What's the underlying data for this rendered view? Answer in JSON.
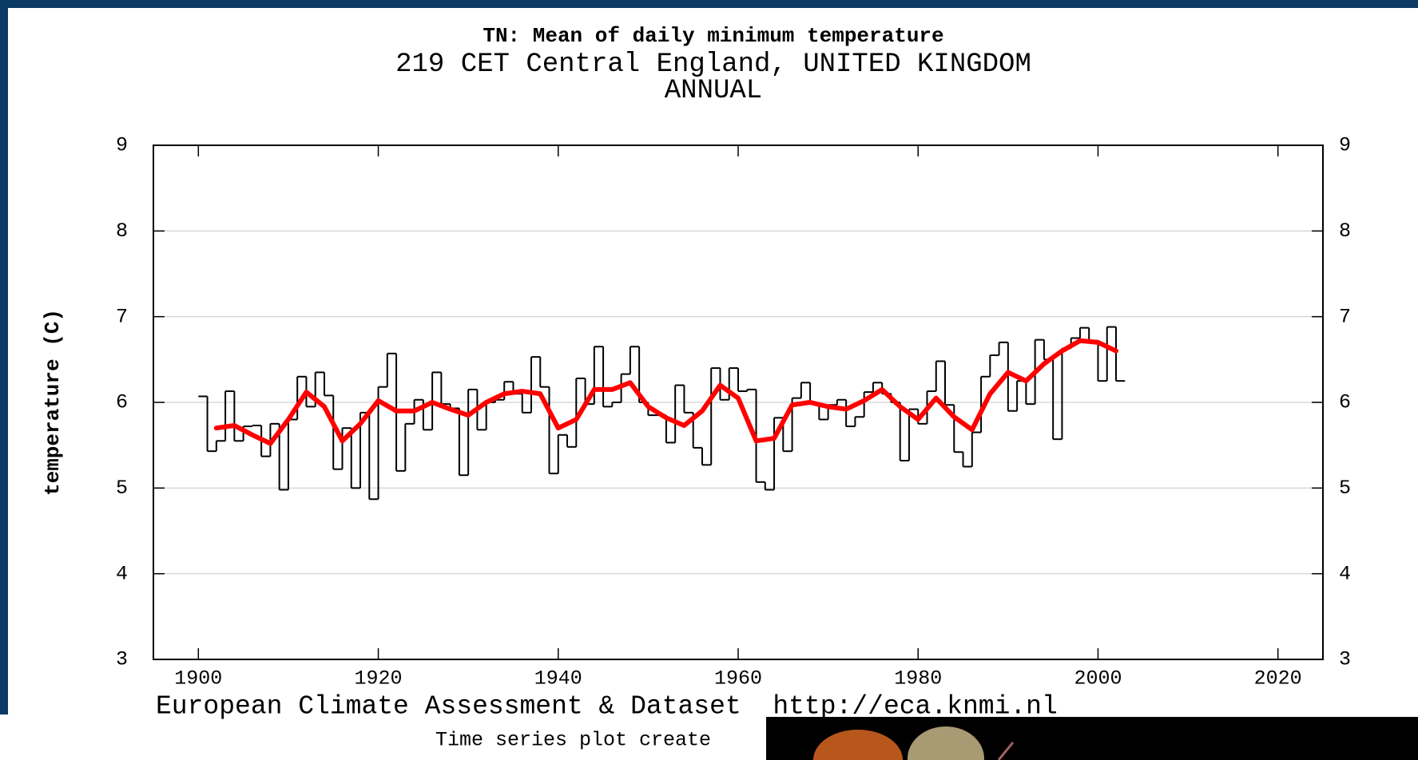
{
  "chart_data": {
    "type": "line",
    "title": "TN: Mean of daily minimum temperature",
    "subtitle": "219 CET Central England, UNITED KINGDOM",
    "period": "ANNUAL",
    "ylabel": "temperature (C)",
    "footer": "European Climate Assessment & Dataset  http://eca.knmi.nl",
    "note": "Time series plot create",
    "xlim": [
      1895,
      2025
    ],
    "xticks": [
      1900,
      1920,
      1940,
      1960,
      1980,
      2000,
      2020
    ],
    "ylim": [
      3,
      9
    ],
    "yticks": [
      3,
      4,
      5,
      6,
      7,
      8,
      9
    ],
    "grid": true,
    "right_axis": true,
    "series": [
      {
        "color": "#000000",
        "drawstyle": "steps-post",
        "x": [
          1900,
          1901,
          1902,
          1903,
          1904,
          1905,
          1906,
          1907,
          1908,
          1909,
          1910,
          1911,
          1912,
          1913,
          1914,
          1915,
          1916,
          1917,
          1918,
          1919,
          1920,
          1921,
          1922,
          1923,
          1924,
          1925,
          1926,
          1927,
          1928,
          1929,
          1930,
          1931,
          1932,
          1933,
          1934,
          1935,
          1936,
          1937,
          1938,
          1939,
          1940,
          1941,
          1942,
          1943,
          1944,
          1945,
          1946,
          1947,
          1948,
          1949,
          1950,
          1951,
          1952,
          1953,
          1954,
          1955,
          1956,
          1957,
          1958,
          1959,
          1960,
          1961,
          1962,
          1963,
          1964,
          1965,
          1966,
          1967,
          1968,
          1969,
          1970,
          1971,
          1972,
          1973,
          1974,
          1975,
          1976,
          1977,
          1978,
          1979,
          1980,
          1981,
          1982,
          1983,
          1984,
          1985,
          1986,
          1987,
          1988,
          1989,
          1990,
          1991,
          1992,
          1993,
          1994,
          1995,
          1996,
          1997,
          1998,
          1999,
          2000,
          2001,
          2002
        ],
        "values": [
          6.07,
          5.43,
          5.55,
          6.13,
          5.55,
          5.72,
          5.73,
          5.37,
          5.75,
          4.98,
          5.8,
          6.3,
          5.95,
          6.35,
          6.08,
          5.22,
          5.7,
          5.0,
          5.88,
          4.87,
          6.18,
          6.57,
          5.2,
          5.75,
          6.03,
          5.68,
          6.35,
          5.98,
          5.93,
          5.15,
          6.15,
          5.68,
          6.0,
          6.03,
          6.24,
          6.1,
          5.88,
          6.53,
          6.18,
          5.17,
          5.62,
          5.48,
          6.28,
          5.98,
          6.65,
          5.95,
          6.0,
          6.33,
          6.65,
          6.0,
          5.85,
          5.85,
          5.53,
          6.2,
          5.88,
          5.47,
          5.27,
          6.4,
          6.03,
          6.4,
          6.13,
          6.15,
          5.07,
          4.98,
          5.82,
          5.43,
          6.05,
          6.23,
          5.98,
          5.8,
          5.97,
          6.03,
          5.72,
          5.83,
          6.12,
          6.23,
          6.1,
          6.0,
          5.32,
          5.92,
          5.75,
          6.13,
          6.48,
          5.97,
          5.42,
          5.25,
          5.65,
          6.3,
          6.55,
          6.7,
          5.9,
          6.25,
          5.98,
          6.73,
          6.5,
          5.57,
          6.63,
          6.75,
          6.87,
          6.72,
          6.25,
          6.88,
          6.25
        ]
      },
      {
        "color": "#ff0000",
        "drawstyle": "smooth",
        "x": [
          1902,
          1904,
          1906,
          1908,
          1910,
          1912,
          1914,
          1916,
          1918,
          1920,
          1922,
          1924,
          1926,
          1928,
          1930,
          1932,
          1934,
          1936,
          1938,
          1940,
          1942,
          1944,
          1946,
          1948,
          1950,
          1952,
          1954,
          1956,
          1958,
          1960,
          1962,
          1964,
          1966,
          1968,
          1970,
          1972,
          1974,
          1976,
          1978,
          1980,
          1982,
          1984,
          1986,
          1988,
          1990,
          1992,
          1994,
          1996,
          1998,
          2000,
          2002
        ],
        "values": [
          5.7,
          5.73,
          5.62,
          5.52,
          5.8,
          6.12,
          5.95,
          5.55,
          5.75,
          6.02,
          5.9,
          5.9,
          6.0,
          5.92,
          5.85,
          6.0,
          6.1,
          6.13,
          6.1,
          5.7,
          5.8,
          6.15,
          6.15,
          6.23,
          5.95,
          5.82,
          5.73,
          5.9,
          6.2,
          6.05,
          5.55,
          5.58,
          5.97,
          6.0,
          5.95,
          5.92,
          6.02,
          6.15,
          5.95,
          5.8,
          6.05,
          5.83,
          5.68,
          6.1,
          6.35,
          6.25,
          6.45,
          6.6,
          6.72,
          6.7,
          6.6
        ]
      }
    ]
  }
}
